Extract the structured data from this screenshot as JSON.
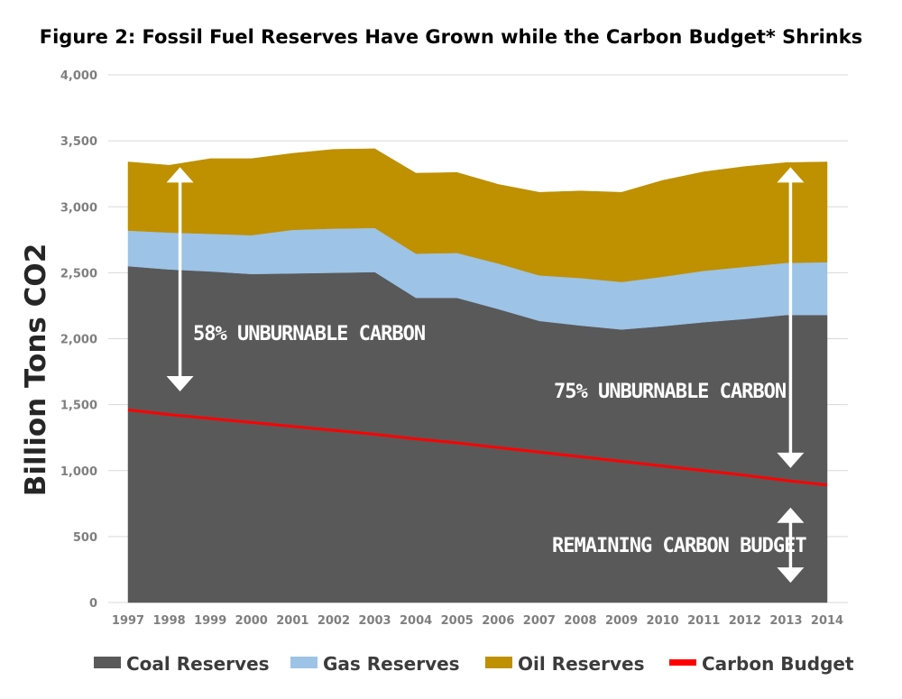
{
  "chart_data": {
    "type": "area",
    "title": "Figure 2: Fossil Fuel Reserves Have Grown while the Carbon Budget* Shrinks",
    "xlabel": "",
    "ylabel": "Billion Tons CO2",
    "ylim": [
      0,
      4000
    ],
    "yticks": [
      0,
      500,
      1000,
      1500,
      2000,
      2500,
      3000,
      3500,
      4000
    ],
    "ytick_labels": [
      "0",
      "500",
      "1,000",
      "1,500",
      "2,000",
      "2,500",
      "3,000",
      "3,500",
      "4,000"
    ],
    "x": [
      "1997",
      "1998",
      "1999",
      "2000",
      "2001",
      "2002",
      "2003",
      "2004",
      "2005",
      "2006",
      "2007",
      "2008",
      "2009",
      "2010",
      "2011",
      "2012",
      "2013",
      "2014"
    ],
    "stacked": true,
    "series": [
      {
        "name": "Coal Reserves",
        "color": "#595959",
        "values": [
          2550,
          2525,
          2510,
          2490,
          2495,
          2500,
          2505,
          2310,
          2310,
          2225,
          2135,
          2100,
          2070,
          2095,
          2125,
          2150,
          2180,
          2180
        ]
      },
      {
        "name": "Gas Reserves",
        "color": "#9dc3e6",
        "values": [
          270,
          280,
          285,
          295,
          330,
          335,
          335,
          335,
          340,
          345,
          345,
          360,
          360,
          375,
          390,
          395,
          395,
          400
        ]
      },
      {
        "name": "Oil Reserves",
        "color": "#bf9000",
        "values": [
          520,
          510,
          570,
          580,
          580,
          600,
          600,
          610,
          610,
          600,
          630,
          660,
          680,
          730,
          750,
          760,
          760,
          760
        ]
      },
      {
        "name": "Carbon Budget",
        "color": "#ff0000",
        "type": "line",
        "values": [
          1460,
          1425,
          1395,
          1365,
          1335,
          1305,
          1275,
          1240,
          1210,
          1175,
          1140,
          1105,
          1070,
          1035,
          1000,
          965,
          925,
          890
        ]
      }
    ],
    "annotations": [
      {
        "text": "58% UNBURNABLE CARBON",
        "year": "1998",
        "from": 1600,
        "to": 3300
      },
      {
        "text": "75% UNBURNABLE CARBON",
        "year": "2013",
        "from": 1020,
        "to": 3300
      },
      {
        "text": "REMAINING CARBON BUDGET",
        "year": "2013",
        "from": 150,
        "to": 720
      }
    ],
    "legend": [
      "Coal Reserves",
      "Gas Reserves",
      "Oil Reserves",
      "Carbon Budget"
    ],
    "legend_position": "bottom",
    "grid": true
  }
}
